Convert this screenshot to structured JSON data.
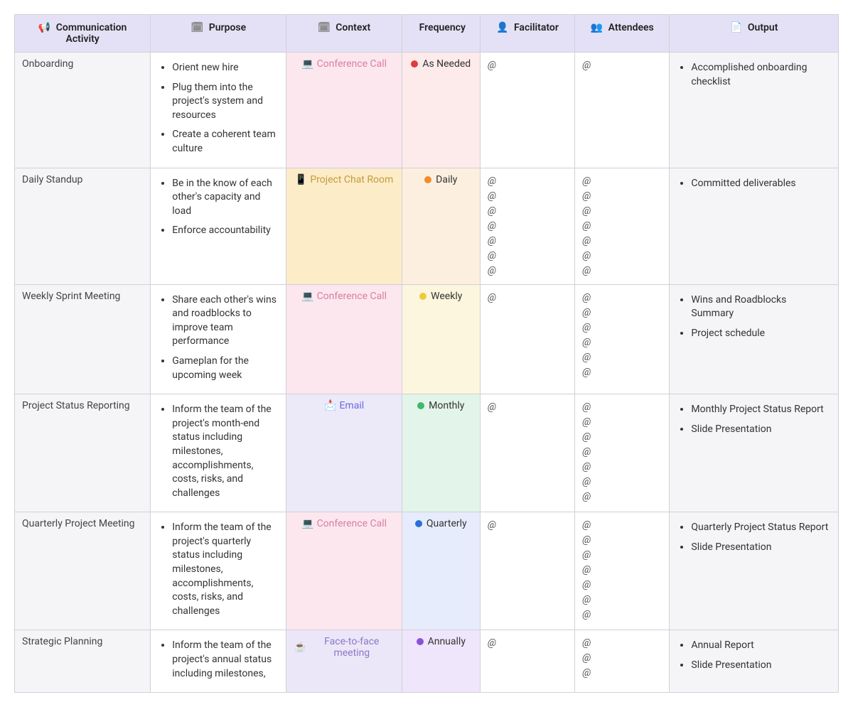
{
  "columns": [
    {
      "label": "Communication Activity",
      "icon": "📢",
      "icon_color": "#9a9aa3"
    },
    {
      "label": "Purpose",
      "icon": "🗓",
      "icon_color": "#9a9aa3"
    },
    {
      "label": "Context",
      "icon": "🗓",
      "icon_color": "#9a9aa3"
    },
    {
      "label": "Frequency",
      "icon": "",
      "icon_color": "#9a9aa3"
    },
    {
      "label": "Facilitator",
      "icon": "👤",
      "icon_color": "#9a9aa3"
    },
    {
      "label": "Attendees",
      "icon": "👥",
      "icon_color": "#9a9aa3"
    },
    {
      "label": "Output",
      "icon": "📄",
      "icon_color": "#9a9aa3"
    }
  ],
  "contexts": {
    "conference_call": {
      "label": "Conference Call",
      "icon": "💻",
      "text_color": "#d87fa1",
      "bg": "#fce7ef"
    },
    "project_chat_room": {
      "label": "Project Chat Room",
      "icon": "📱",
      "text_color": "#c59a3f",
      "bg": "#fcecc7"
    },
    "email": {
      "label": "Email",
      "icon": "📩",
      "text_color": "#6b6be0",
      "bg": "#eceaf9"
    },
    "face_to_face": {
      "label": "Face-to-face meeting",
      "icon": "☕",
      "text_color": "#8b78c9",
      "bg": "#ece7f8"
    }
  },
  "frequencies": {
    "as_needed": {
      "label": "As Needed",
      "dot": "#e23b3b",
      "bg": "#fdeaea"
    },
    "daily": {
      "label": "Daily",
      "dot": "#f08c2d",
      "bg": "#fdefdf"
    },
    "weekly": {
      "label": "Weekly",
      "dot": "#f0c93a",
      "bg": "#fdf6de"
    },
    "monthly": {
      "label": "Monthly",
      "dot": "#3fb86e",
      "bg": "#e3f5ea"
    },
    "quarterly": {
      "label": "Quarterly",
      "dot": "#2b6fd9",
      "bg": "#e6ecfb"
    },
    "annually": {
      "label": "Annually",
      "dot": "#8a52d9",
      "bg": "#efe6fb"
    }
  },
  "rows": [
    {
      "activity": "Onboarding",
      "purpose": [
        "Orient new hire",
        "Plug them into the project's system and resources",
        "Create a coherent team culture"
      ],
      "context": "conference_call",
      "frequency": "as_needed",
      "facilitator_count": 1,
      "attendees_count": 1,
      "output": [
        "Accomplished onboarding checklist"
      ]
    },
    {
      "activity": "Daily Standup",
      "purpose": [
        "Be in the know of each other's capacity and load",
        "Enforce accountability"
      ],
      "context": "project_chat_room",
      "frequency": "daily",
      "facilitator_count": 7,
      "attendees_count": 7,
      "output": [
        "Committed deliverables"
      ]
    },
    {
      "activity": "Weekly Sprint Meeting",
      "purpose": [
        "Share each other's wins and roadblocks to improve team performance",
        "Gameplan for the upcoming week"
      ],
      "context": "conference_call",
      "frequency": "weekly",
      "facilitator_count": 1,
      "attendees_count": 6,
      "output": [
        "Wins and Roadblocks Summary",
        "Project schedule"
      ]
    },
    {
      "activity": "Project Status Reporting",
      "purpose": [
        "Inform the team of the project's month-end status including milestones, accomplishments, costs, risks, and challenges"
      ],
      "context": "email",
      "frequency": "monthly",
      "facilitator_count": 1,
      "attendees_count": 7,
      "output": [
        "Monthly Project Status Report",
        "Slide Presentation"
      ]
    },
    {
      "activity": "Quarterly Project Meeting",
      "purpose": [
        "Inform the team of the project's quarterly status including milestones, accomplishments, costs, risks, and challenges"
      ],
      "context": "conference_call",
      "frequency": "quarterly",
      "facilitator_count": 1,
      "attendees_count": 7,
      "output": [
        "Quarterly Project Status Report",
        "Slide Presentation"
      ]
    },
    {
      "activity": "Strategic Planning",
      "purpose": [
        "Inform the team of the project's annual status including milestones,"
      ],
      "context": "face_to_face",
      "frequency": "annually",
      "facilitator_count": 1,
      "attendees_count": 3,
      "output": [
        "Annual Report",
        "Slide Presentation"
      ]
    }
  ],
  "at_symbol": "@"
}
